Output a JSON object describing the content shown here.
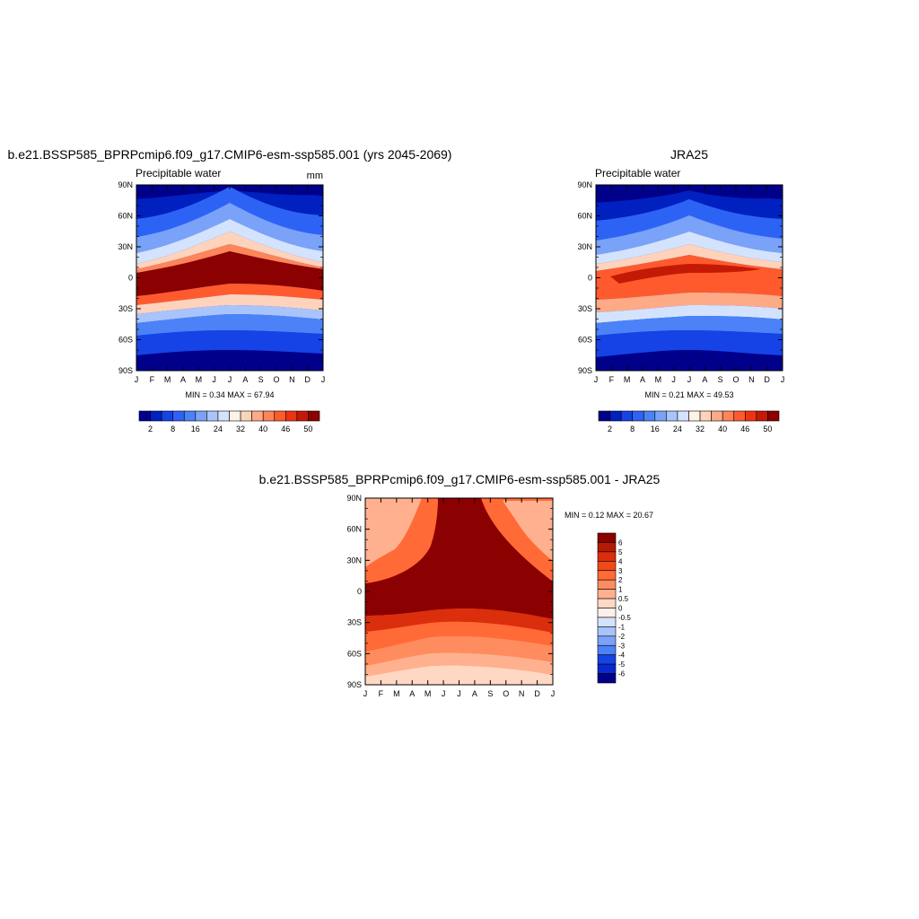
{
  "figure": {
    "panel_a_title": "b.e21.BSSP585_BPRPcmip6.f09_g17.CMIP6-esm-ssp585.001 (yrs 2045-2069)",
    "panel_b_title": "JRA25",
    "panel_c_title": "b.e21.BSSP585_BPRPcmip6.f09_g17.CMIP6-esm-ssp585.001 - JRA25"
  },
  "chart_data": [
    {
      "type": "heatmap",
      "title": "b.e21.BSSP585_BPRPcmip6.f09_g17.CMIP6-esm-ssp585.001 (yrs 2045-2069)",
      "subtitle": "Precipitable water",
      "units": "mm",
      "x_ticks": [
        "J",
        "F",
        "M",
        "A",
        "M",
        "J",
        "J",
        "A",
        "S",
        "O",
        "N",
        "D",
        "J"
      ],
      "y_ticks": [
        "90N",
        "60N",
        "30N",
        "0",
        "30S",
        "60S",
        "90S"
      ],
      "stats": "MIN =   0.34 MAX =  67.94",
      "min": 0.34,
      "max": 67.94,
      "colorbar_labels": [
        "2",
        "8",
        "16",
        "24",
        "32",
        "40",
        "46",
        "50"
      ],
      "colorbar_colors": [
        "#00008b",
        "#0020c0",
        "#1543e6",
        "#2d63f5",
        "#4c82f7",
        "#7aa2f9",
        "#a9c4fb",
        "#d3e3fd",
        "#fff2e6",
        "#ffd2bb",
        "#ffaa86",
        "#ff8458",
        "#ff5a2e",
        "#ee3311",
        "#c41a05",
        "#8b0000"
      ],
      "grid": false
    },
    {
      "type": "heatmap",
      "title": "JRA25",
      "subtitle": "Precipitable water",
      "x_ticks": [
        "J",
        "F",
        "M",
        "A",
        "M",
        "J",
        "J",
        "A",
        "S",
        "O",
        "N",
        "D",
        "J"
      ],
      "y_ticks": [
        "90N",
        "60N",
        "30N",
        "0",
        "30S",
        "60S",
        "90S"
      ],
      "stats": "MIN =   0.21 MAX =  49.53",
      "min": 0.21,
      "max": 49.53,
      "colorbar_labels": [
        "2",
        "8",
        "16",
        "24",
        "32",
        "40",
        "46",
        "50"
      ],
      "colorbar_colors": [
        "#00008b",
        "#0020c0",
        "#1543e6",
        "#2d63f5",
        "#4c82f7",
        "#7aa2f9",
        "#a9c4fb",
        "#d3e3fd",
        "#fff2e6",
        "#ffd2bb",
        "#ffaa86",
        "#ff8458",
        "#ff5a2e",
        "#ee3311",
        "#c41a05",
        "#8b0000"
      ],
      "grid": false
    },
    {
      "type": "heatmap",
      "title": "b.e21.BSSP585_BPRPcmip6.f09_g17.CMIP6-esm-ssp585.001 - JRA25",
      "x_ticks": [
        "J",
        "F",
        "M",
        "A",
        "M",
        "J",
        "J",
        "A",
        "S",
        "O",
        "N",
        "D",
        "J"
      ],
      "y_ticks": [
        "90N",
        "60N",
        "30N",
        "0",
        "30S",
        "60S",
        "90S"
      ],
      "stats": "MIN =   0.12 MAX =  20.67",
      "min": 0.12,
      "max": 20.67,
      "colorbar_labels": [
        "6",
        "5",
        "4",
        "3",
        "2",
        "1",
        "0.5",
        "0",
        "-0.5",
        "-1",
        "-2",
        "-3",
        "-4",
        "-5",
        "-6"
      ],
      "colorbar_colors": [
        "#8b0000",
        "#b51a06",
        "#db2e0c",
        "#f04a1a",
        "#ff6a36",
        "#ff8c5e",
        "#ffb18f",
        "#ffd8c4",
        "#fdf0ea",
        "#d3e3fd",
        "#a9c4fb",
        "#7aa2f9",
        "#4c82f7",
        "#1543e6",
        "#0a2ad0",
        "#00008b"
      ],
      "grid": false
    }
  ]
}
